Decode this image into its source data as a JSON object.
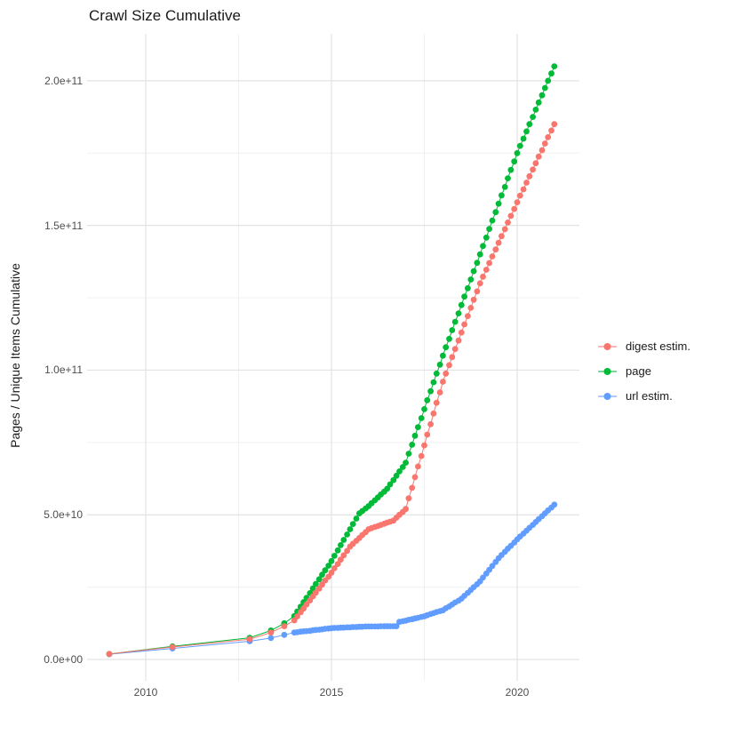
{
  "chart_data": {
    "type": "scatter",
    "title": "Crawl Size Cumulative",
    "xlabel": "",
    "ylabel": "Pages / Unique Items Cumulative",
    "value_unit": 1000000000.0,
    "xlim": [
      2008.4,
      2021.7
    ],
    "ylim": [
      0,
      215000000000.0
    ],
    "grid": true,
    "legend_position": "right",
    "axes": {
      "x_major": [
        {
          "label": "2010",
          "year": 2010
        },
        {
          "label": "2015",
          "year": 2015
        },
        {
          "label": "2020",
          "year": 2020
        }
      ],
      "x_minor": [
        2012.5,
        2017.5
      ],
      "y_major": [
        {
          "label": "0.0e+00",
          "value": 0
        },
        {
          "label": "5.0e+10",
          "value": 50
        },
        {
          "label": "1.0e+11",
          "value": 100
        },
        {
          "label": "1.5e+11",
          "value": 150
        },
        {
          "label": "2.0e+11",
          "value": 200
        }
      ],
      "y_minor": [
        25,
        75,
        125,
        175
      ]
    },
    "series": [
      {
        "name": "digest estim.",
        "color": "#F8766D",
        "points": [
          [
            2009.02,
            1.9
          ],
          [
            2010.72,
            4.3
          ],
          [
            2012.8,
            7
          ],
          [
            2013.37,
            9.3
          ],
          [
            2013.73,
            11.5
          ],
          [
            2014,
            13.5
          ],
          [
            2014.08,
            14.9
          ],
          [
            2014.17,
            16.3
          ],
          [
            2014.25,
            17.6
          ],
          [
            2014.33,
            19
          ],
          [
            2014.42,
            20.4
          ],
          [
            2014.5,
            21.8
          ],
          [
            2014.58,
            23.1
          ],
          [
            2014.67,
            24.5
          ],
          [
            2014.75,
            25.9
          ],
          [
            2014.83,
            27.3
          ],
          [
            2014.92,
            28.6
          ],
          [
            2015,
            30
          ],
          [
            2015.08,
            31.5
          ],
          [
            2015.17,
            33
          ],
          [
            2015.25,
            34.5
          ],
          [
            2015.33,
            36
          ],
          [
            2015.42,
            37.5
          ],
          [
            2015.5,
            39
          ],
          [
            2015.58,
            40
          ],
          [
            2015.67,
            41
          ],
          [
            2015.75,
            42
          ],
          [
            2015.83,
            43
          ],
          [
            2015.92,
            44
          ],
          [
            2016,
            45
          ],
          [
            2016.08,
            45.4
          ],
          [
            2016.17,
            45.8
          ],
          [
            2016.25,
            46.1
          ],
          [
            2016.33,
            46.5
          ],
          [
            2016.42,
            46.9
          ],
          [
            2016.5,
            47.3
          ],
          [
            2016.58,
            47.6
          ],
          [
            2016.67,
            48
          ],
          [
            2016.75,
            49
          ],
          [
            2016.83,
            50
          ],
          [
            2016.92,
            51
          ],
          [
            2017,
            52
          ],
          [
            2017.08,
            55.7
          ],
          [
            2017.17,
            59.3
          ],
          [
            2017.25,
            63
          ],
          [
            2017.33,
            66.7
          ],
          [
            2017.42,
            70.3
          ],
          [
            2017.5,
            74
          ],
          [
            2017.58,
            77.7
          ],
          [
            2017.67,
            81.3
          ],
          [
            2017.75,
            85
          ],
          [
            2017.83,
            88.7
          ],
          [
            2017.92,
            92.3
          ],
          [
            2018,
            96
          ],
          [
            2018.08,
            98.8
          ],
          [
            2018.17,
            101.7
          ],
          [
            2018.25,
            104.5
          ],
          [
            2018.33,
            107.3
          ],
          [
            2018.42,
            110.2
          ],
          [
            2018.5,
            113
          ],
          [
            2018.58,
            115.8
          ],
          [
            2018.67,
            118.7
          ],
          [
            2018.75,
            121.5
          ],
          [
            2018.83,
            124.3
          ],
          [
            2018.92,
            127.2
          ],
          [
            2019,
            130
          ],
          [
            2019.08,
            132.3
          ],
          [
            2019.17,
            134.7
          ],
          [
            2019.25,
            137
          ],
          [
            2019.33,
            139.3
          ],
          [
            2019.42,
            141.7
          ],
          [
            2019.5,
            144
          ],
          [
            2019.58,
            146.3
          ],
          [
            2019.67,
            148.7
          ],
          [
            2019.75,
            151
          ],
          [
            2019.83,
            153.3
          ],
          [
            2019.92,
            155.7
          ],
          [
            2020,
            158
          ],
          [
            2020.08,
            160.3
          ],
          [
            2020.17,
            162.5
          ],
          [
            2020.25,
            164.8
          ],
          [
            2020.33,
            167
          ],
          [
            2020.42,
            169.3
          ],
          [
            2020.5,
            171.5
          ],
          [
            2020.58,
            173.8
          ],
          [
            2020.67,
            176
          ],
          [
            2020.75,
            178.3
          ],
          [
            2020.83,
            180.5
          ],
          [
            2020.92,
            182.8
          ],
          [
            2021,
            185
          ]
        ]
      },
      {
        "name": "page",
        "color": "#00BA38",
        "points": [
          [
            2009.02,
            1.9
          ],
          [
            2010.72,
            4.5
          ],
          [
            2012.8,
            7.5
          ],
          [
            2013.37,
            10
          ],
          [
            2013.73,
            12.5
          ],
          [
            2014,
            15
          ],
          [
            2014.08,
            16.6
          ],
          [
            2014.17,
            18.2
          ],
          [
            2014.25,
            19.8
          ],
          [
            2014.33,
            21.3
          ],
          [
            2014.42,
            22.9
          ],
          [
            2014.5,
            24.5
          ],
          [
            2014.58,
            26.1
          ],
          [
            2014.67,
            27.7
          ],
          [
            2014.75,
            29.3
          ],
          [
            2014.83,
            30.8
          ],
          [
            2014.92,
            32.4
          ],
          [
            2015,
            34
          ],
          [
            2015.08,
            35.8
          ],
          [
            2015.17,
            37.7
          ],
          [
            2015.25,
            39.5
          ],
          [
            2015.33,
            41.3
          ],
          [
            2015.42,
            43.2
          ],
          [
            2015.5,
            45
          ],
          [
            2015.58,
            46.8
          ],
          [
            2015.67,
            48.7
          ],
          [
            2015.75,
            50.5
          ],
          [
            2015.83,
            51.3
          ],
          [
            2015.92,
            52.2
          ],
          [
            2016,
            53
          ],
          [
            2016.08,
            54
          ],
          [
            2016.17,
            55
          ],
          [
            2016.25,
            56
          ],
          [
            2016.33,
            57
          ],
          [
            2016.42,
            58
          ],
          [
            2016.5,
            59
          ],
          [
            2016.58,
            60.5
          ],
          [
            2016.67,
            62
          ],
          [
            2016.75,
            63.5
          ],
          [
            2016.83,
            65
          ],
          [
            2016.92,
            66.5
          ],
          [
            2017,
            68
          ],
          [
            2017.08,
            71.1
          ],
          [
            2017.17,
            74.2
          ],
          [
            2017.25,
            77.3
          ],
          [
            2017.33,
            80.3
          ],
          [
            2017.42,
            83.4
          ],
          [
            2017.5,
            86.5
          ],
          [
            2017.58,
            89.6
          ],
          [
            2017.67,
            92.7
          ],
          [
            2017.75,
            95.8
          ],
          [
            2017.83,
            98.8
          ],
          [
            2017.92,
            101.9
          ],
          [
            2018,
            105
          ],
          [
            2018.08,
            107.9
          ],
          [
            2018.17,
            110.8
          ],
          [
            2018.25,
            113.8
          ],
          [
            2018.33,
            116.7
          ],
          [
            2018.42,
            119.6
          ],
          [
            2018.5,
            122.5
          ],
          [
            2018.58,
            125.4
          ],
          [
            2018.67,
            128.3
          ],
          [
            2018.75,
            131.3
          ],
          [
            2018.83,
            134.2
          ],
          [
            2018.92,
            137.1
          ],
          [
            2019,
            140
          ],
          [
            2019.08,
            142.9
          ],
          [
            2019.17,
            145.8
          ],
          [
            2019.25,
            148.8
          ],
          [
            2019.33,
            151.7
          ],
          [
            2019.42,
            154.6
          ],
          [
            2019.5,
            157.5
          ],
          [
            2019.58,
            160.4
          ],
          [
            2019.67,
            163.3
          ],
          [
            2019.75,
            166.3
          ],
          [
            2019.83,
            169.2
          ],
          [
            2019.92,
            172.1
          ],
          [
            2020,
            175
          ],
          [
            2020.08,
            177.5
          ],
          [
            2020.17,
            180
          ],
          [
            2020.25,
            182.5
          ],
          [
            2020.33,
            185
          ],
          [
            2020.42,
            187.5
          ],
          [
            2020.5,
            190
          ],
          [
            2020.58,
            192.5
          ],
          [
            2020.67,
            195
          ],
          [
            2020.75,
            197.5
          ],
          [
            2020.83,
            200
          ],
          [
            2020.92,
            202.5
          ],
          [
            2021,
            205
          ]
        ]
      },
      {
        "name": "url estim.",
        "color": "#619CFF",
        "points": [
          [
            2009.02,
            1.8
          ],
          [
            2010.72,
            3.8
          ],
          [
            2012.8,
            6.3
          ],
          [
            2013.37,
            7.4
          ],
          [
            2013.73,
            8.5
          ],
          [
            2014,
            9.3
          ],
          [
            2014.08,
            9.4
          ],
          [
            2014.17,
            9.6
          ],
          [
            2014.25,
            9.7
          ],
          [
            2014.33,
            9.8
          ],
          [
            2014.42,
            9.9
          ],
          [
            2014.5,
            10.1
          ],
          [
            2014.58,
            10.2
          ],
          [
            2014.67,
            10.3
          ],
          [
            2014.75,
            10.4
          ],
          [
            2014.83,
            10.6
          ],
          [
            2014.92,
            10.7
          ],
          [
            2015,
            10.8
          ],
          [
            2015.08,
            10.9
          ],
          [
            2015.17,
            10.9
          ],
          [
            2015.25,
            11
          ],
          [
            2015.33,
            11
          ],
          [
            2015.42,
            11.1
          ],
          [
            2015.5,
            11.1
          ],
          [
            2015.58,
            11.2
          ],
          [
            2015.67,
            11.2
          ],
          [
            2015.75,
            11.3
          ],
          [
            2015.83,
            11.3
          ],
          [
            2015.92,
            11.4
          ],
          [
            2016,
            11.4
          ],
          [
            2016.08,
            11.4
          ],
          [
            2016.17,
            11.4
          ],
          [
            2016.25,
            11.4
          ],
          [
            2016.33,
            11.5
          ],
          [
            2016.42,
            11.5
          ],
          [
            2016.5,
            11.5
          ],
          [
            2016.58,
            11.5
          ],
          [
            2016.67,
            11.5
          ],
          [
            2016.75,
            11.5
          ],
          [
            2016.83,
            13
          ],
          [
            2016.92,
            13.2
          ],
          [
            2017,
            13.4
          ],
          [
            2017.08,
            13.7
          ],
          [
            2017.17,
            13.9
          ],
          [
            2017.25,
            14.2
          ],
          [
            2017.33,
            14.4
          ],
          [
            2017.42,
            14.7
          ],
          [
            2017.5,
            14.9
          ],
          [
            2017.58,
            15.3
          ],
          [
            2017.67,
            15.7
          ],
          [
            2017.75,
            16
          ],
          [
            2017.83,
            16.4
          ],
          [
            2017.92,
            16.7
          ],
          [
            2018,
            17
          ],
          [
            2018.08,
            17.7
          ],
          [
            2018.17,
            18.3
          ],
          [
            2018.25,
            19
          ],
          [
            2018.33,
            19.7
          ],
          [
            2018.42,
            20.3
          ],
          [
            2018.5,
            21
          ],
          [
            2018.58,
            22
          ],
          [
            2018.67,
            23
          ],
          [
            2018.75,
            24
          ],
          [
            2018.83,
            25
          ],
          [
            2018.92,
            26
          ],
          [
            2019,
            27
          ],
          [
            2019.08,
            28.3
          ],
          [
            2019.17,
            29.7
          ],
          [
            2019.25,
            31
          ],
          [
            2019.33,
            32.3
          ],
          [
            2019.42,
            33.7
          ],
          [
            2019.5,
            35
          ],
          [
            2019.58,
            36.1
          ],
          [
            2019.67,
            37.2
          ],
          [
            2019.75,
            38.3
          ],
          [
            2019.83,
            39.3
          ],
          [
            2019.92,
            40.4
          ],
          [
            2020,
            41.5
          ],
          [
            2020.08,
            42.5
          ],
          [
            2020.17,
            43.5
          ],
          [
            2020.25,
            44.5
          ],
          [
            2020.33,
            45.5
          ],
          [
            2020.42,
            46.5
          ],
          [
            2020.5,
            47.5
          ],
          [
            2020.58,
            48.5
          ],
          [
            2020.67,
            49.5
          ],
          [
            2020.75,
            50.5
          ],
          [
            2020.83,
            51.5
          ],
          [
            2020.92,
            52.5
          ],
          [
            2021,
            53.5
          ]
        ]
      }
    ],
    "style": {
      "grid_major_color": "#e3e3e3",
      "grid_minor_color": "#f0f0f0",
      "point_radius": 3.4,
      "background": "#ffffff"
    }
  }
}
